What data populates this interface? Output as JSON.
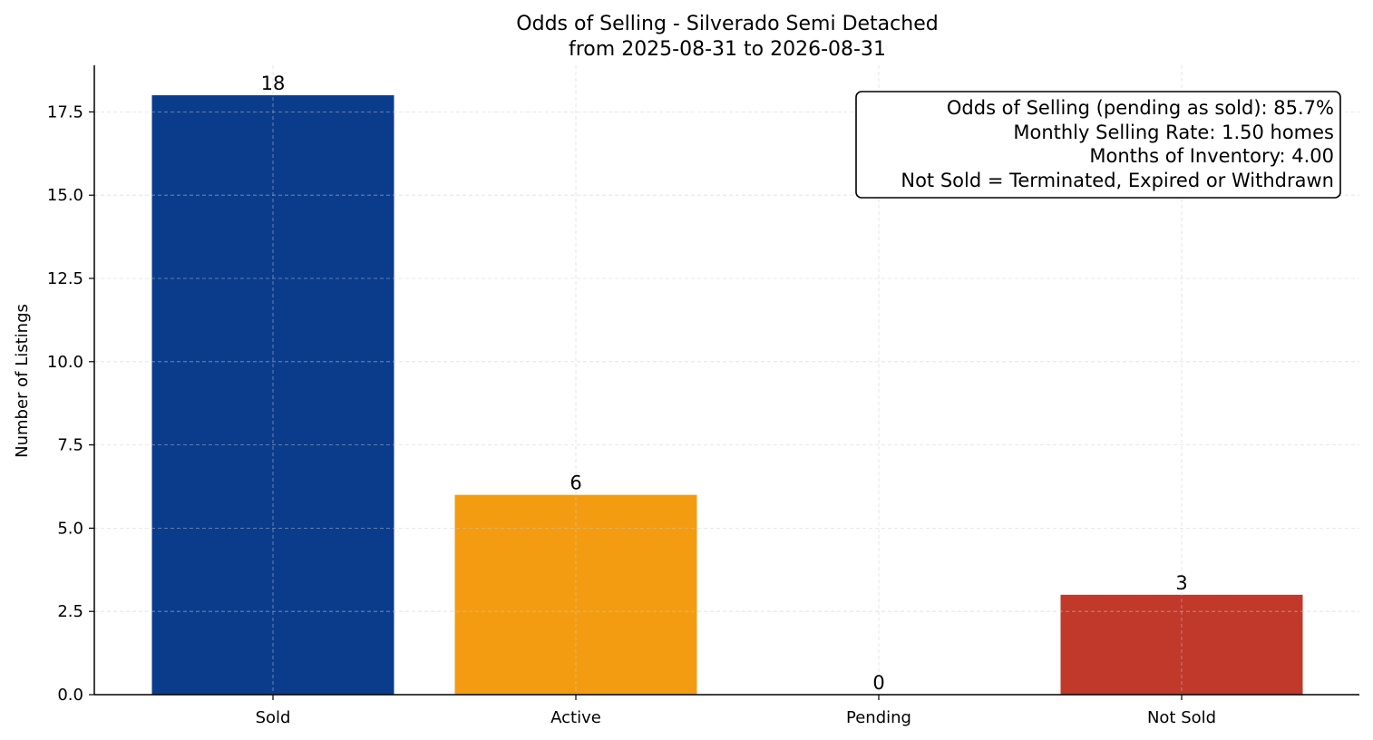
{
  "chart_data": {
    "type": "bar",
    "title": "Odds of Selling - Silverado Semi Detached",
    "subtitle": "from 2025-08-31 to 2026-08-31",
    "xlabel": "",
    "ylabel": "Number of Listings",
    "categories": [
      "Sold",
      "Active",
      "Pending",
      "Not Sold"
    ],
    "values": [
      18,
      6,
      0,
      3
    ],
    "data_labels": [
      "18",
      "6",
      "0",
      "3"
    ],
    "colors": [
      "#0b3c8c",
      "#f39c12",
      "#7f8c8d",
      "#c0392b"
    ],
    "ylim": [
      0,
      18.9
    ],
    "yticks": [
      0,
      2.5,
      5,
      7.5,
      10,
      12.5,
      15,
      17.5
    ],
    "ytick_labels": [
      "0.0",
      "2.5",
      "5.0",
      "7.5",
      "10.0",
      "12.5",
      "15.0",
      "17.5"
    ],
    "grid": true,
    "info_box": {
      "lines": [
        "Odds of Selling (pending as sold): 85.7%",
        "Monthly Selling Rate: 1.50 homes",
        "Months of Inventory: 4.00",
        "Not Sold = Terminated, Expired or Withdrawn"
      ],
      "placement": "top-right"
    }
  }
}
